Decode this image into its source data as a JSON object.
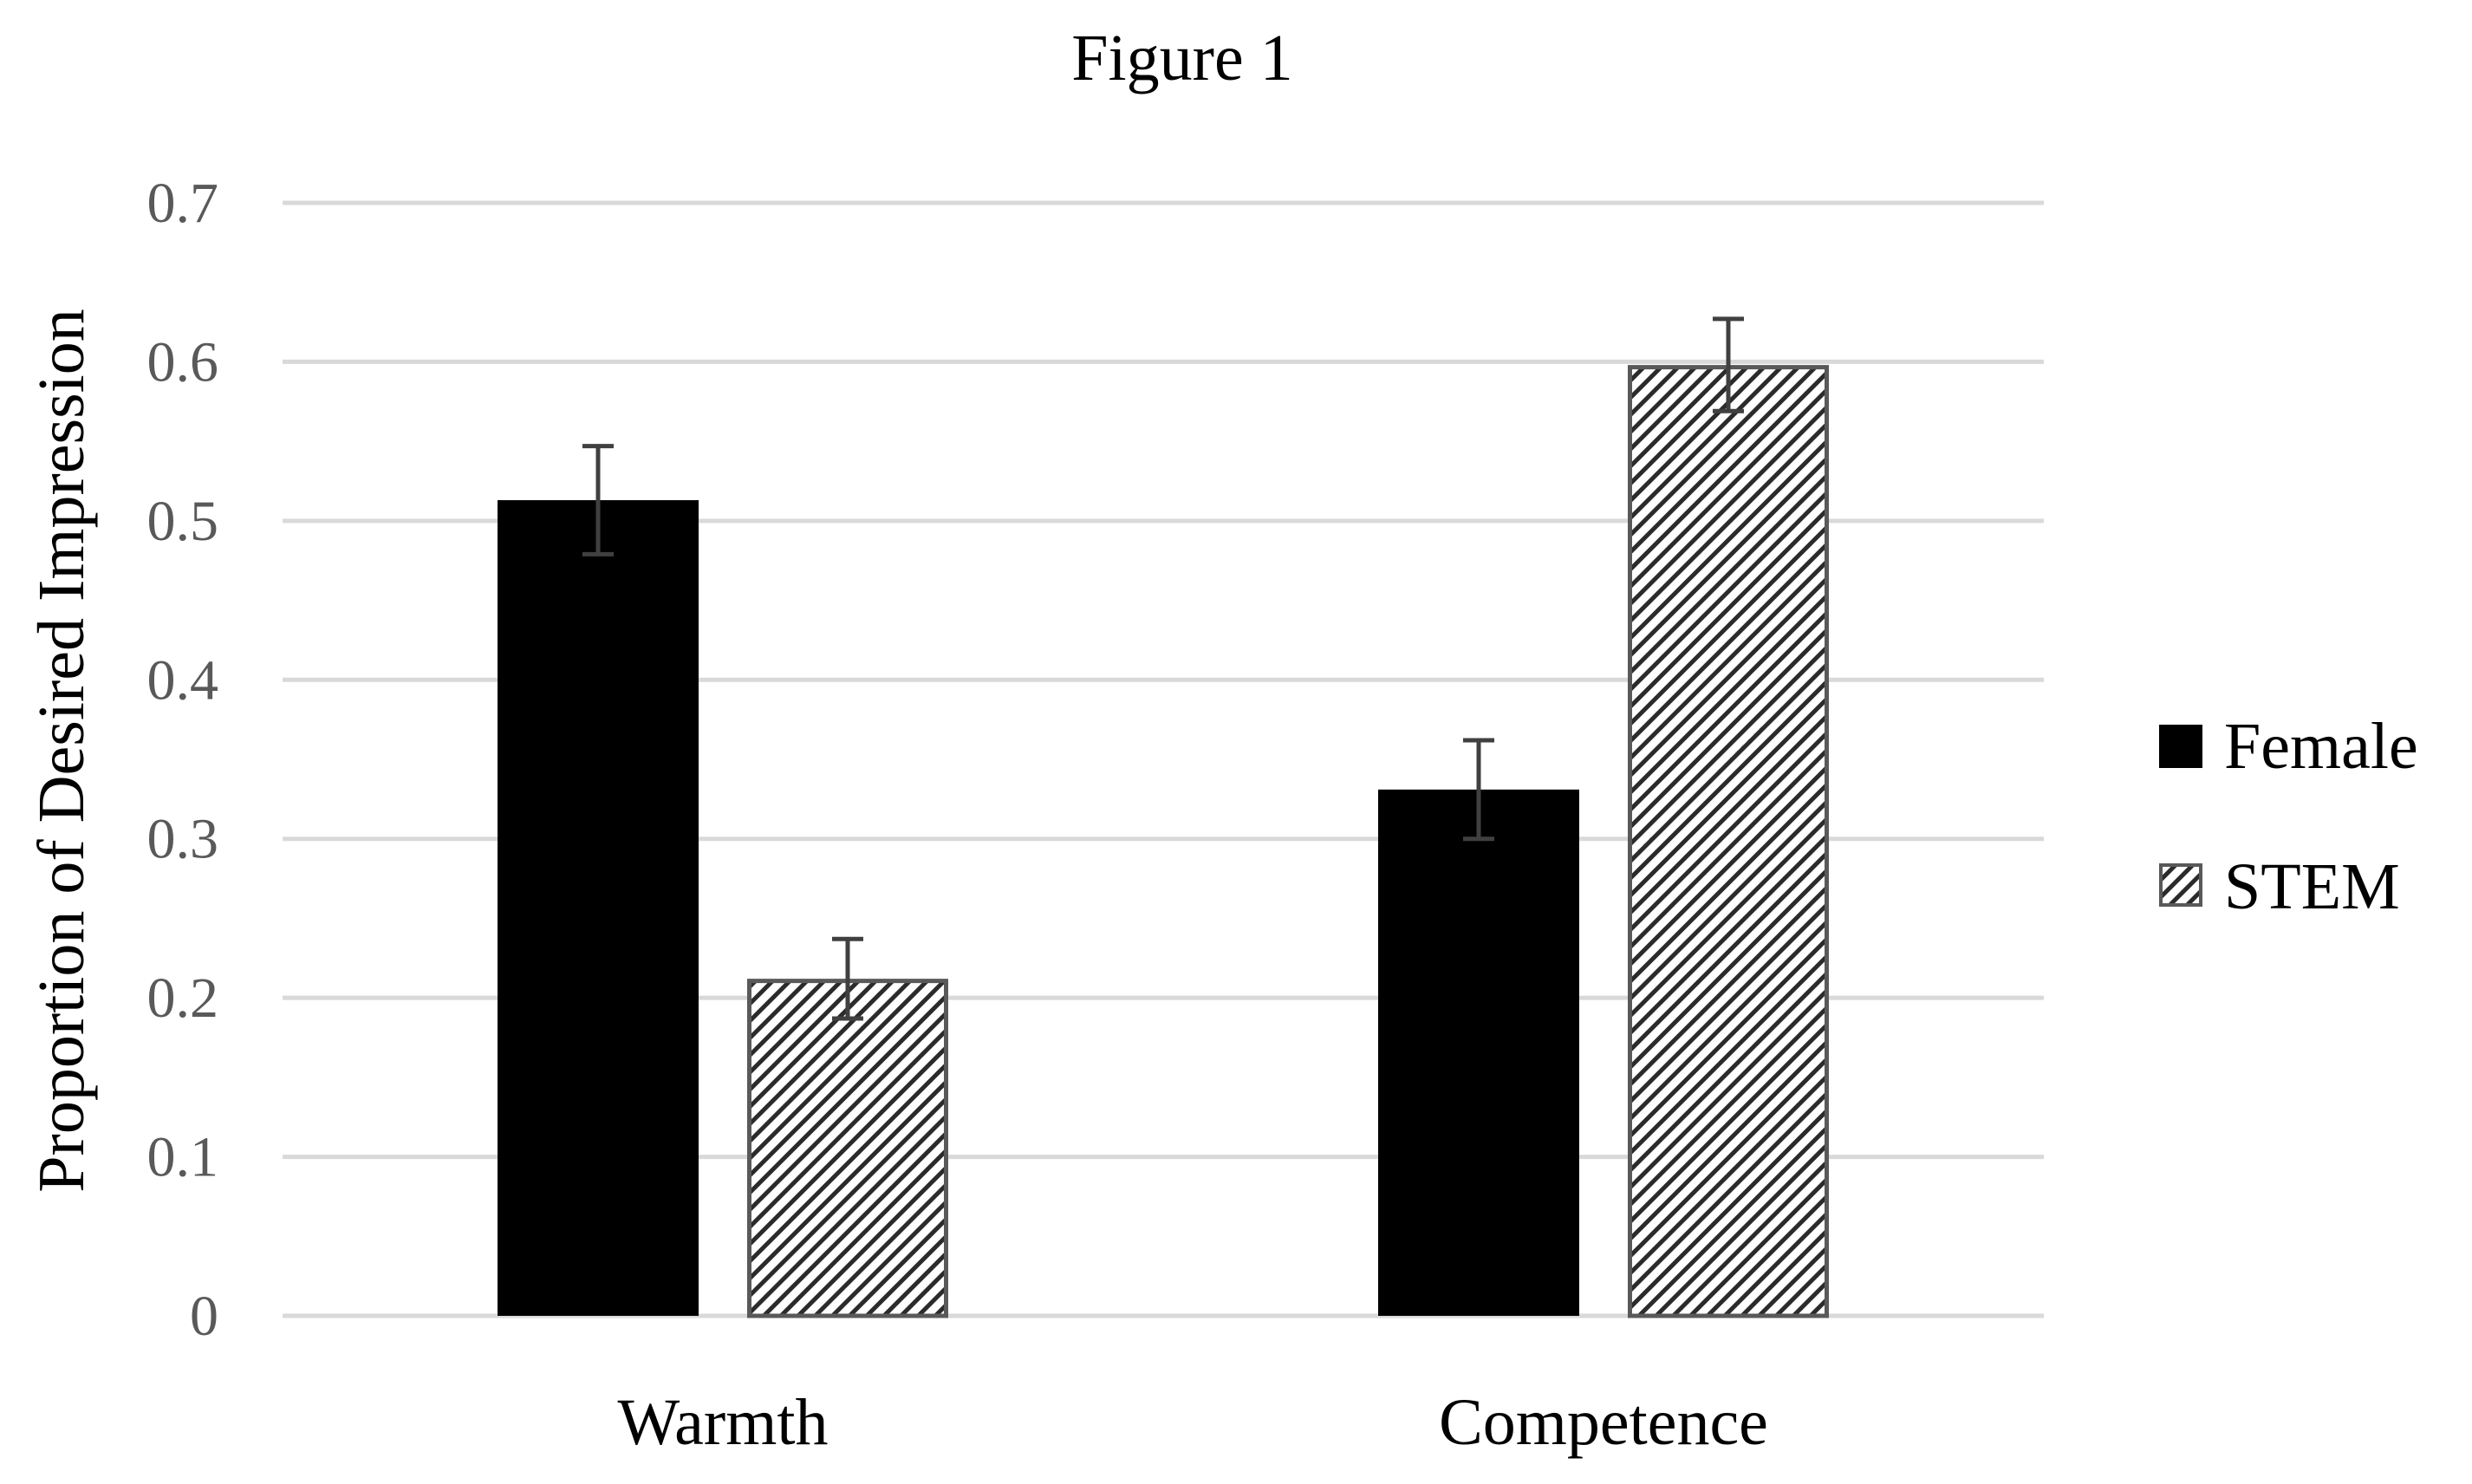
{
  "chart_data": {
    "type": "bar",
    "title": "Figure 1",
    "xlabel": "",
    "ylabel": "Proportion of Desired Impression",
    "ylim": [
      0,
      0.7
    ],
    "yticks": [
      "0",
      "0.1",
      "0.2",
      "0.3",
      "0.4",
      "0.5",
      "0.6",
      "0.7"
    ],
    "ytick_values": [
      0,
      0.1,
      0.2,
      0.3,
      0.4,
      0.5,
      0.6,
      0.7
    ],
    "grid": true,
    "legend_position": "right",
    "categories": [
      "Warmth",
      "Competence"
    ],
    "series": [
      {
        "name": "Female",
        "values": [
          0.513,
          0.331
        ],
        "error": [
          0.034,
          0.031
        ],
        "style": "solid",
        "color": "#000000"
      },
      {
        "name": "STEM",
        "values": [
          0.212,
          0.598
        ],
        "error": [
          0.025,
          0.029
        ],
        "style": "hatched",
        "color": "#595959"
      }
    ]
  }
}
